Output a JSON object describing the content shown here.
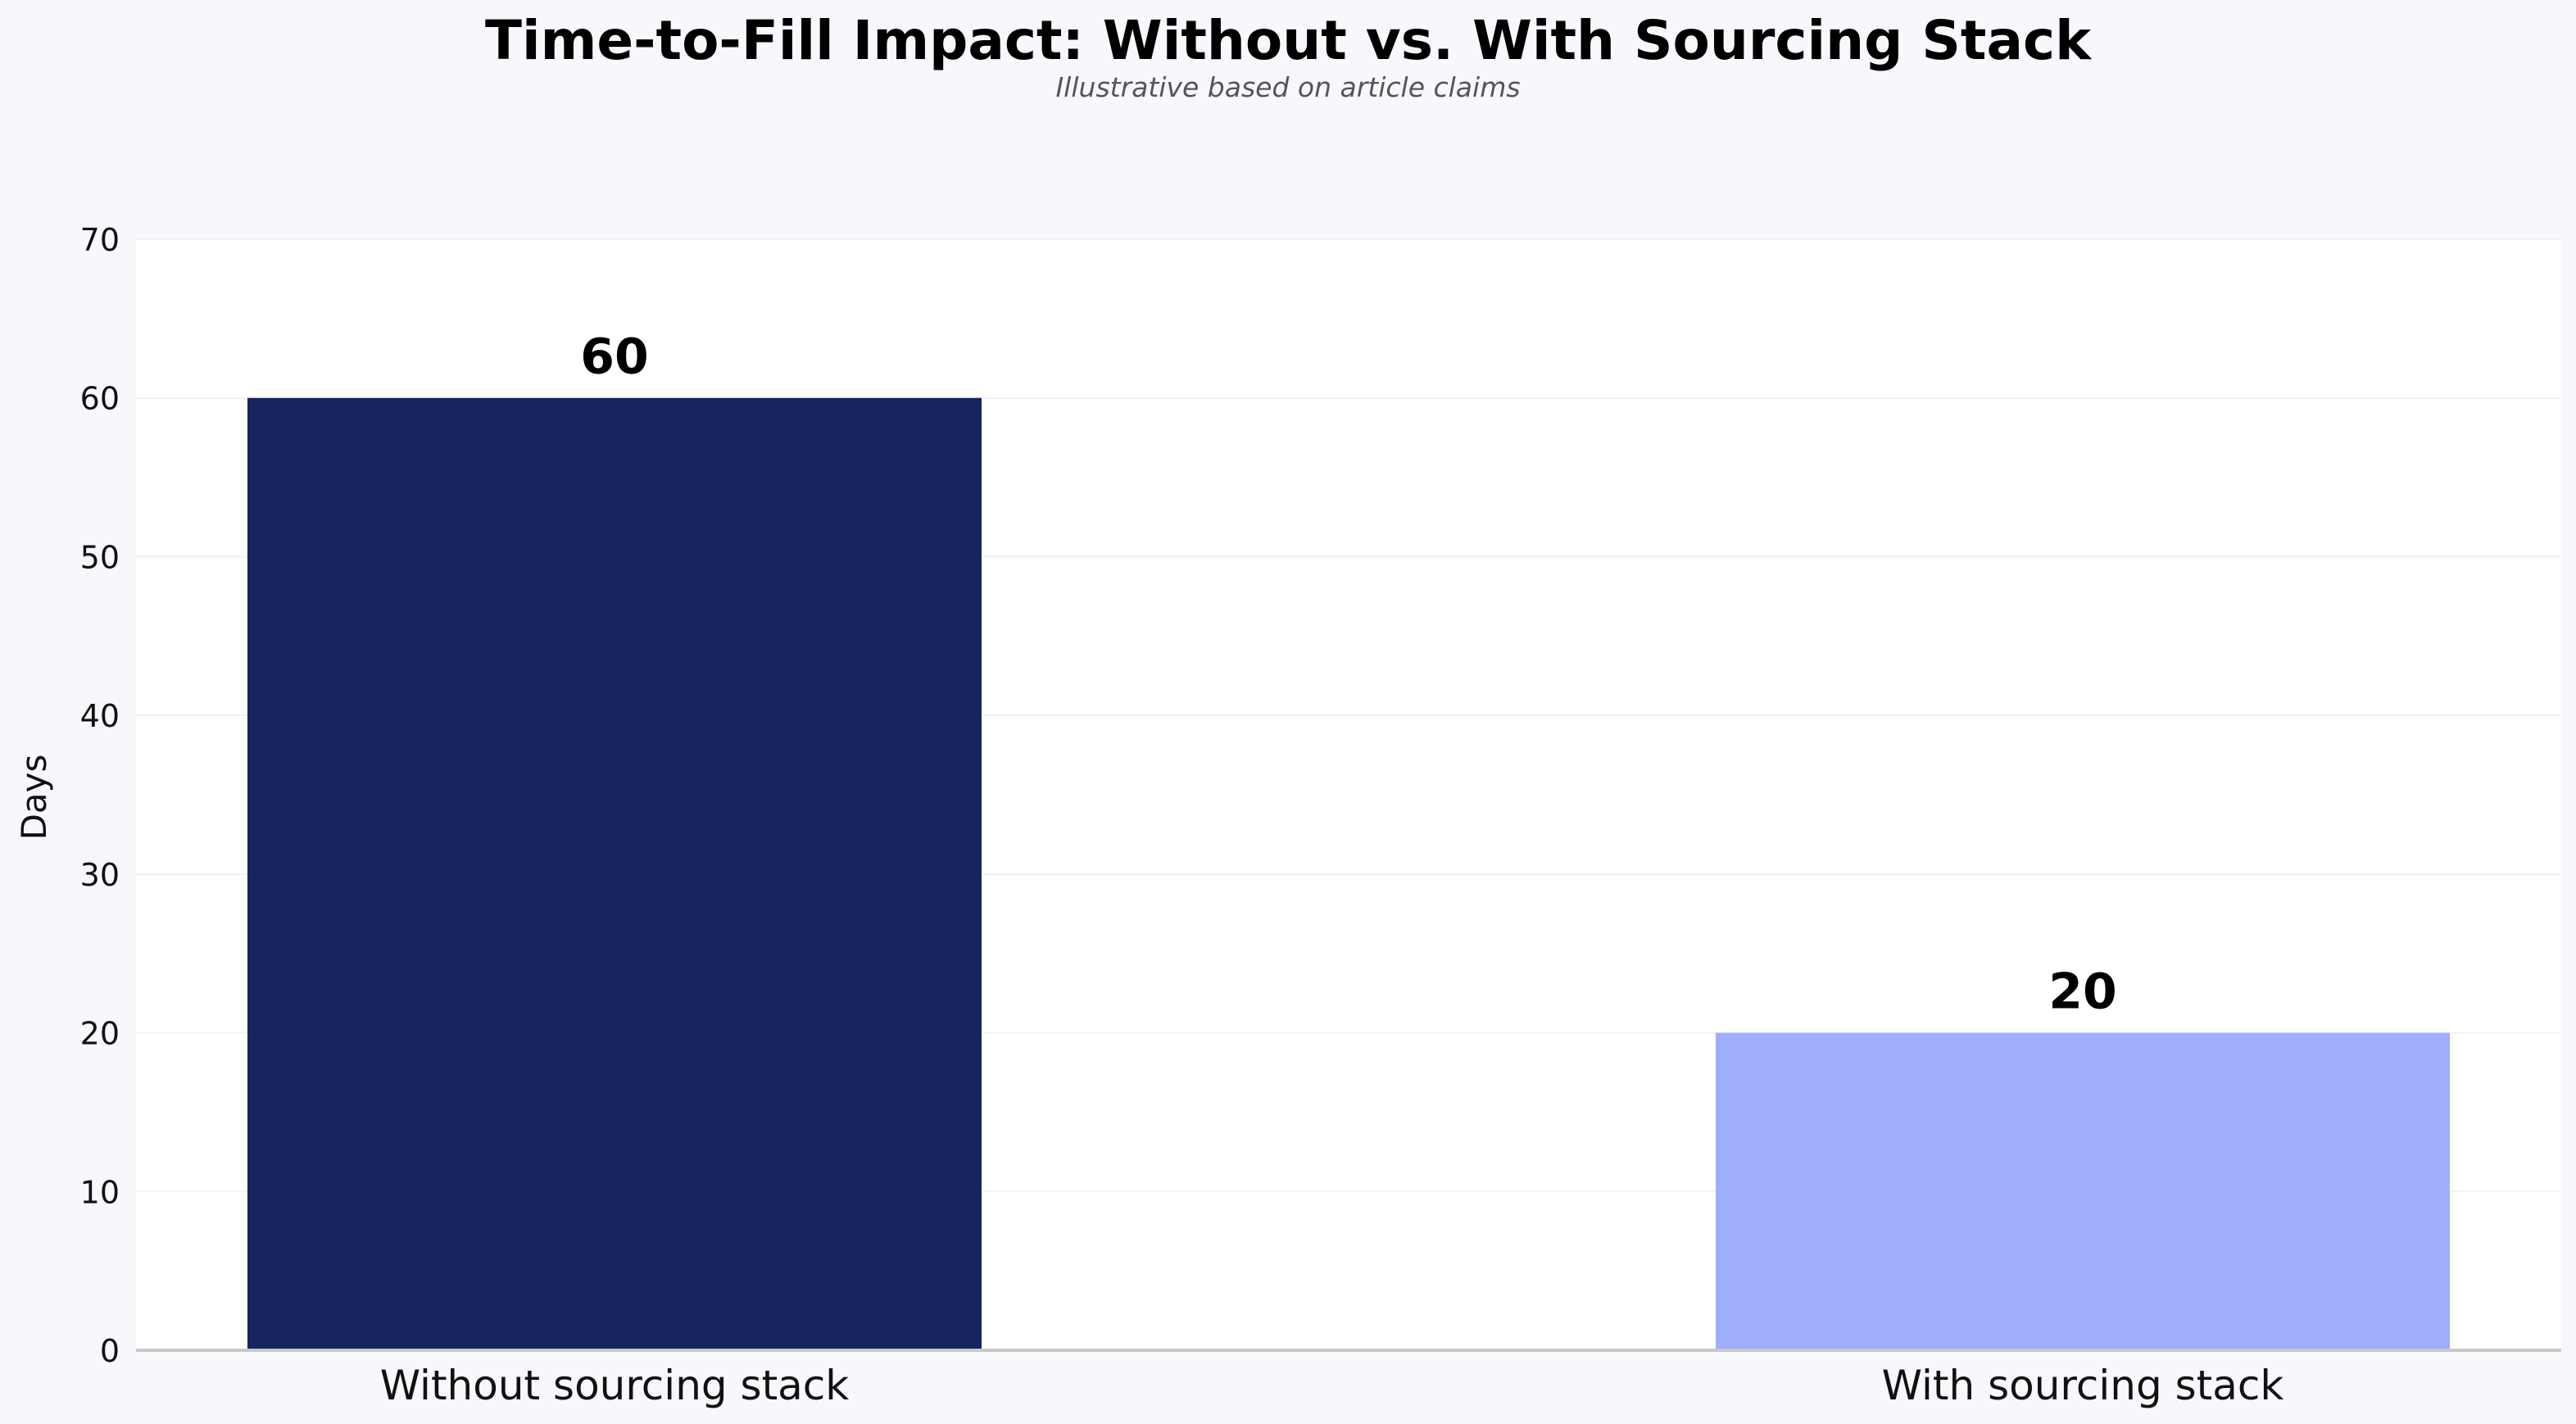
{
  "chart_data": {
    "type": "bar",
    "title": "Time-to-Fill Impact: Without vs. With Sourcing Stack",
    "subtitle": "Illustrative based on article claims",
    "xlabel": "",
    "ylabel": "Days",
    "categories": [
      "Without sourcing stack",
      "With sourcing stack"
    ],
    "values": [
      60,
      20
    ],
    "data_labels": [
      "60",
      "20"
    ],
    "colors": [
      "#15245c",
      "#a1aefc"
    ],
    "ylim": [
      0,
      70
    ],
    "yticks": [
      0,
      10,
      20,
      30,
      40,
      50,
      60,
      70
    ],
    "ytick_labels": [
      "0",
      "10",
      "20",
      "30",
      "40",
      "50",
      "60",
      "70"
    ],
    "grid": true,
    "legend": "none",
    "background_color": "#f7f8fc",
    "plot_background_color": "#ffffff"
  }
}
